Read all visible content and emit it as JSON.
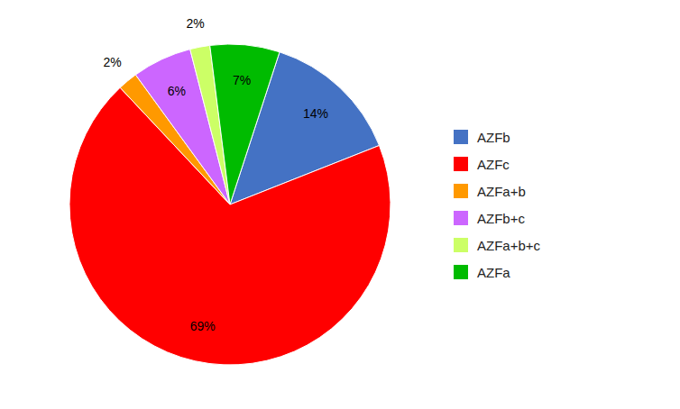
{
  "chart_data": {
    "type": "pie",
    "categories": [
      "AZFb",
      "AZFc",
      "AZFa+b",
      "AZFb+c",
      "AZFa+b+c",
      "AZFa"
    ],
    "values": [
      14,
      69,
      2,
      6,
      2,
      7
    ],
    "value_labels": [
      "14%",
      "69%",
      "2%",
      "6%",
      "2%",
      "7%"
    ],
    "colors": [
      "#4472c4",
      "#ff0000",
      "#ff9900",
      "#cc66ff",
      "#ccff66",
      "#00bb00"
    ],
    "data_labels": true,
    "legend": "right"
  }
}
